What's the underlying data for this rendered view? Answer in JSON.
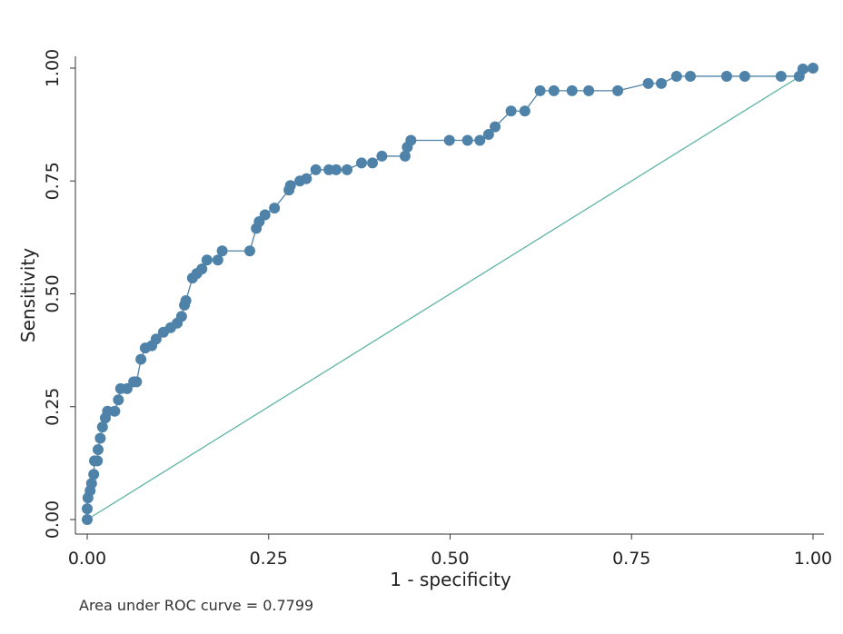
{
  "chart_data": {
    "type": "line",
    "x_label": "1 - specificity",
    "y_label": "Sensitivity",
    "note": "Area under ROC curve = 0.7799",
    "xlim": [
      0,
      1
    ],
    "ylim": [
      0,
      1
    ],
    "xticks": [
      {
        "value": 0,
        "label": "0.00"
      },
      {
        "value": 0.25,
        "label": "0.25"
      },
      {
        "value": 0.5,
        "label": "0.50"
      },
      {
        "value": 0.75,
        "label": "0.75"
      },
      {
        "value": 1,
        "label": "1.00"
      }
    ],
    "yticks": [
      {
        "value": 0,
        "label": "0.00"
      },
      {
        "value": 0.25,
        "label": "0.25"
      },
      {
        "value": 0.5,
        "label": "0.50"
      },
      {
        "value": 0.75,
        "label": "0.75"
      },
      {
        "value": 1,
        "label": "1.00"
      }
    ],
    "series": [
      {
        "color": "#4f82a8",
        "x": [
          0,
          0,
          0.001,
          0.004,
          0.006,
          0.009,
          0.01,
          0.014,
          0.015,
          0.018,
          0.021,
          0.025,
          0.028,
          0.038,
          0.043,
          0.046,
          0.055,
          0.064,
          0.068,
          0.074,
          0.08,
          0.089,
          0.095,
          0.105,
          0.115,
          0.124,
          0.13,
          0.134,
          0.136,
          0.145,
          0.151,
          0.158,
          0.165,
          0.18,
          0.186,
          0.224,
          0.233,
          0.237,
          0.245,
          0.258,
          0.278,
          0.28,
          0.293,
          0.302,
          0.315,
          0.333,
          0.343,
          0.358,
          0.378,
          0.393,
          0.406,
          0.438,
          0.441,
          0.446,
          0.499,
          0.524,
          0.541,
          0.553,
          0.562,
          0.584,
          0.603,
          0.624,
          0.643,
          0.668,
          0.691,
          0.731,
          0.773,
          0.791,
          0.812,
          0.831,
          0.881,
          0.906,
          0.956,
          0.981,
          0.986,
          1
        ],
        "values": [
          0,
          0.024,
          0.048,
          0.064,
          0.08,
          0.1,
          0.13,
          0.13,
          0.155,
          0.18,
          0.205,
          0.225,
          0.24,
          0.24,
          0.265,
          0.29,
          0.29,
          0.305,
          0.305,
          0.355,
          0.38,
          0.385,
          0.4,
          0.415,
          0.425,
          0.435,
          0.45,
          0.475,
          0.485,
          0.535,
          0.545,
          0.555,
          0.575,
          0.575,
          0.595,
          0.595,
          0.645,
          0.66,
          0.675,
          0.69,
          0.73,
          0.74,
          0.75,
          0.755,
          0.775,
          0.775,
          0.775,
          0.775,
          0.79,
          0.79,
          0.805,
          0.805,
          0.825,
          0.84,
          0.84,
          0.84,
          0.84,
          0.853,
          0.87,
          0.905,
          0.905,
          0.95,
          0.95,
          0.95,
          0.95,
          0.95,
          0.966,
          0.966,
          0.982,
          0.982,
          0.982,
          0.982,
          0.982,
          0.982,
          0.998,
          1
        ]
      }
    ],
    "reference_line": {
      "color": "#5db3a5",
      "x": [
        0,
        1
      ],
      "y": [
        0,
        1
      ]
    }
  }
}
